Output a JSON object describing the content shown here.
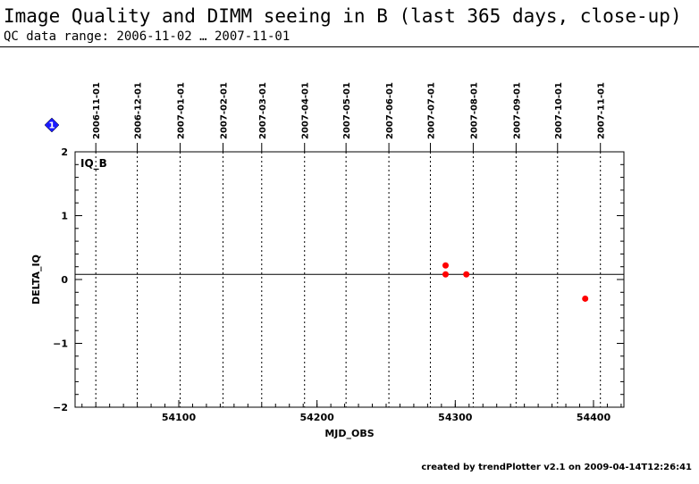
{
  "header": {
    "title": "Image Quality and DIMM seeing in B (last 365 days, close-up)",
    "subtitle": "QC data range: 2006-11-02 … 2007-11-01"
  },
  "footer": {
    "text": "created by trendPlotter v2.1 on 2009-04-14T12:26:41"
  },
  "marker": {
    "label": "1",
    "color": "#1a1aff"
  },
  "chart_data": {
    "type": "scatter",
    "panel_label": "IQ_B",
    "xlabel": "MJD_OBS",
    "ylabel": "DELTA_IQ",
    "xlim": [
      54025,
      54422
    ],
    "ylim": [
      -2,
      2
    ],
    "x_ticks": [
      54100,
      54200,
      54300,
      54400
    ],
    "y_ticks": [
      -2,
      -1,
      0,
      1,
      2
    ],
    "reference_line_y": 0.08,
    "date_lines": [
      {
        "label": "2006-11-01",
        "mjd": 54040
      },
      {
        "label": "2006-12-01",
        "mjd": 54070
      },
      {
        "label": "2007-01-01",
        "mjd": 54101
      },
      {
        "label": "2007-02-01",
        "mjd": 54132
      },
      {
        "label": "2007-03-01",
        "mjd": 54160
      },
      {
        "label": "2007-04-01",
        "mjd": 54191
      },
      {
        "label": "2007-05-01",
        "mjd": 54221
      },
      {
        "label": "2007-06-01",
        "mjd": 54252
      },
      {
        "label": "2007-07-01",
        "mjd": 54282
      },
      {
        "label": "2007-08-01",
        "mjd": 54313
      },
      {
        "label": "2007-09-01",
        "mjd": 54344
      },
      {
        "label": "2007-10-01",
        "mjd": 54374
      },
      {
        "label": "2007-11-01",
        "mjd": 54405
      }
    ],
    "series": [
      {
        "color": "#ff0000",
        "points": [
          {
            "x": 54293,
            "y": 0.22
          },
          {
            "x": 54293,
            "y": 0.08
          },
          {
            "x": 54308,
            "y": 0.08
          },
          {
            "x": 54394,
            "y": -0.3
          }
        ]
      }
    ]
  }
}
